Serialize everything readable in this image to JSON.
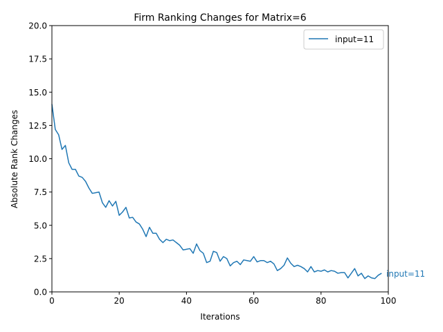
{
  "chart_data": {
    "type": "line",
    "title": "Firm Ranking Changes for Matrix=6",
    "xlabel": "Iterations",
    "ylabel": "Absolute Rank Changes",
    "xlim": [
      0,
      100
    ],
    "ylim": [
      0,
      20
    ],
    "xticks": [
      "0",
      "20",
      "40",
      "60",
      "80",
      "100"
    ],
    "yticks": [
      "0.0",
      "2.5",
      "5.0",
      "7.5",
      "10.0",
      "12.5",
      "15.0",
      "17.5",
      "20.0"
    ],
    "legend_position": "top-right",
    "grid": false,
    "series": [
      {
        "name": "input=11",
        "end_label": "input=11",
        "color": "#1f77b4",
        "x": [
          0,
          1,
          2,
          3,
          4,
          5,
          6,
          7,
          8,
          9,
          10,
          11,
          12,
          13,
          14,
          15,
          16,
          17,
          18,
          19,
          20,
          21,
          22,
          23,
          24,
          25,
          26,
          27,
          28,
          29,
          30,
          31,
          32,
          33,
          34,
          35,
          36,
          37,
          38,
          39,
          40,
          41,
          42,
          43,
          44,
          45,
          46,
          47,
          48,
          49,
          50,
          51,
          52,
          53,
          54,
          55,
          56,
          57,
          58,
          59,
          60,
          61,
          62,
          63,
          64,
          65,
          66,
          67,
          68,
          69,
          70,
          71,
          72,
          73,
          74,
          75,
          76,
          77,
          78,
          79,
          80,
          81,
          82,
          83,
          84,
          85,
          86,
          87,
          88,
          89,
          90,
          91,
          92,
          93,
          94,
          95,
          96,
          97,
          98
        ],
        "values": [
          14.1,
          12.2,
          11.8,
          10.7,
          11.0,
          9.7,
          9.2,
          9.2,
          8.7,
          8.6,
          8.3,
          7.8,
          7.4,
          7.45,
          7.5,
          6.7,
          6.35,
          6.85,
          6.45,
          6.8,
          5.75,
          6.0,
          6.35,
          5.55,
          5.6,
          5.25,
          5.1,
          4.7,
          4.15,
          4.85,
          4.4,
          4.4,
          3.95,
          3.7,
          3.95,
          3.85,
          3.9,
          3.7,
          3.5,
          3.15,
          3.2,
          3.25,
          2.9,
          3.6,
          3.1,
          2.9,
          2.2,
          2.3,
          3.05,
          2.95,
          2.3,
          2.65,
          2.5,
          1.95,
          2.2,
          2.3,
          2.05,
          2.4,
          2.35,
          2.3,
          2.65,
          2.25,
          2.35,
          2.35,
          2.2,
          2.3,
          2.1,
          1.6,
          1.75,
          2.0,
          2.55,
          2.15,
          1.9,
          2.0,
          1.9,
          1.75,
          1.5,
          1.9,
          1.5,
          1.6,
          1.55,
          1.65,
          1.5,
          1.6,
          1.55,
          1.4,
          1.45,
          1.45,
          1.05,
          1.4,
          1.75,
          1.2,
          1.4,
          1.0,
          1.2,
          1.05,
          1.0,
          1.25,
          1.4
        ]
      }
    ]
  }
}
